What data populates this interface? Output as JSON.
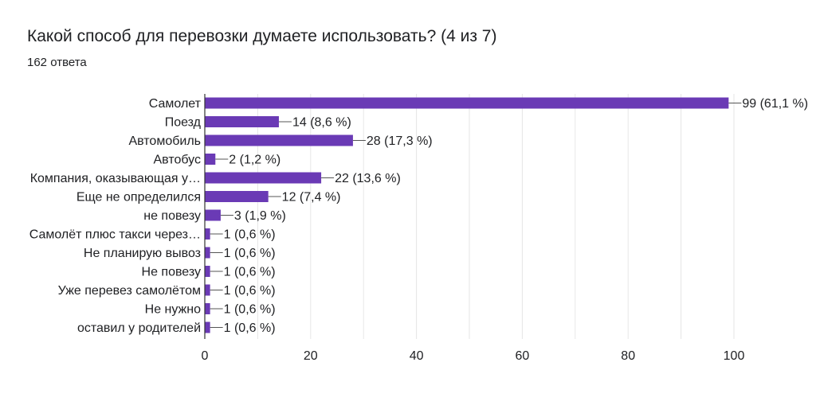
{
  "header": {
    "title": "Какой способ для перевозки думаете использовать?  (4 из 7)",
    "subtitle": "162 ответа"
  },
  "colors": {
    "bar": "#6a3ab5",
    "grid": "#e6e6e6",
    "axis": "#333333",
    "text": "#202124"
  },
  "chart_data": {
    "type": "bar",
    "orientation": "horizontal",
    "title": "Какой способ для перевозки думаете использовать?  (4 из 7)",
    "categories": [
      "Самолет",
      "Поезд",
      "Автомобиль",
      "Автобус",
      "Компания, оказывающая у…",
      "Еще не определился",
      "не повезу",
      "Самолёт плюс такси через…",
      "Не планирую вывоз",
      "Не повезу",
      "Уже перевез самолётом",
      "Не нужно",
      "оставил у родителей"
    ],
    "values": [
      99,
      14,
      28,
      2,
      22,
      12,
      3,
      1,
      1,
      1,
      1,
      1,
      1
    ],
    "data_labels": [
      "99 (61,1 %)",
      "14 (8,6 %)",
      "28 (17,3 %)",
      "2 (1,2 %)",
      "22 (13,6 %)",
      "12 (7,4 %)",
      "3 (1,9 %)",
      "1 (0,6 %)",
      "1 (0,6 %)",
      "1 (0,6 %)",
      "1 (0,6 %)",
      "1 (0,6 %)",
      "1 (0,6 %)"
    ],
    "xlim": [
      0,
      100
    ],
    "xticks": [
      0,
      20,
      40,
      60,
      80,
      100
    ],
    "xtick_labels": [
      "0",
      "20",
      "40",
      "60",
      "80",
      "100"
    ],
    "xlabel": "",
    "ylabel": "",
    "grid": true
  }
}
